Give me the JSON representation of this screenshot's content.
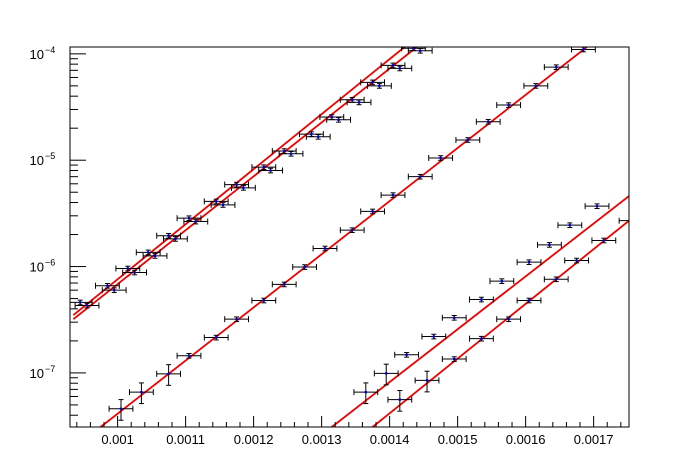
{
  "chart_data": {
    "type": "scatter",
    "title": "",
    "xlabel": "",
    "ylabel": "",
    "xlim": [
      0.00093,
      0.001752
    ],
    "ylim": [
      3.1e-08,
      0.000116
    ],
    "yscale": "log",
    "grid": false,
    "legend": "none",
    "x_ticks": [
      {
        "value": 0.001,
        "label": "0.001"
      },
      {
        "value": 0.0011,
        "label": "0.0011"
      },
      {
        "value": 0.0012,
        "label": "0.0012"
      },
      {
        "value": 0.0013,
        "label": "0.0013"
      },
      {
        "value": 0.0014,
        "label": "0.0014"
      },
      {
        "value": 0.0015,
        "label": "0.0015"
      },
      {
        "value": 0.0016,
        "label": "0.0016"
      },
      {
        "value": 0.0017,
        "label": "0.0017"
      }
    ],
    "y_ticks": [
      {
        "value": 1e-07,
        "base": "10",
        "exp": "−7"
      },
      {
        "value": 1e-06,
        "base": "10",
        "exp": "−6"
      },
      {
        "value": 1e-05,
        "base": "10",
        "exp": "−5"
      },
      {
        "value": 0.0001,
        "base": "10",
        "exp": "−4"
      }
    ],
    "colors": {
      "fit": "#ee0000",
      "marker": "#0000cc",
      "errorbar": "#000000",
      "axis": "#000000"
    },
    "x_error": 1.75e-05,
    "series": [
      {
        "fit": {
          "x0": 0.000935,
          "y0": 3.5e-07,
          "x1": 0.001422,
          "y1": 0.000116
        },
        "points": [
          [
            0.000945,
            4.6e-07
          ],
          [
            0.000985,
            6.6e-07
          ],
          [
            0.001015,
            9.6e-07
          ],
          [
            0.001045,
            1.36e-06
          ],
          [
            0.001075,
            1.95e-06
          ],
          [
            0.001105,
            2.85e-06
          ],
          [
            0.001145,
            4.1e-06
          ],
          [
            0.001175,
            5.9e-06
          ],
          [
            0.001215,
            8.6e-06
          ],
          [
            0.001245,
            1.22e-05
          ],
          [
            0.001285,
            1.76e-05
          ],
          [
            0.001315,
            2.55e-05
          ],
          [
            0.001345,
            3.7e-05
          ],
          [
            0.001375,
            5.4e-05
          ],
          [
            0.001405,
            7.8e-05
          ],
          [
            0.001435,
            0.000113
          ]
        ]
      },
      {
        "fit": {
          "x0": 0.000935,
          "y0": 3.2e-07,
          "x1": 0.00144,
          "y1": 0.000116
        },
        "points": [
          [
            0.000955,
            4.3e-07
          ],
          [
            0.000995,
            6e-07
          ],
          [
            0.001025,
            8.8e-07
          ],
          [
            0.001055,
            1.26e-06
          ],
          [
            0.001085,
            1.82e-06
          ],
          [
            0.001115,
            2.65e-06
          ],
          [
            0.001155,
            3.8e-06
          ],
          [
            0.001185,
            5.5e-06
          ],
          [
            0.001225,
            8e-06
          ],
          [
            0.001255,
            1.15e-05
          ],
          [
            0.001295,
            1.66e-05
          ],
          [
            0.001325,
            2.4e-05
          ],
          [
            0.001355,
            3.5e-05
          ],
          [
            0.001385,
            5e-05
          ],
          [
            0.001415,
            7.3e-05
          ],
          [
            0.001445,
            0.000107
          ]
        ]
      },
      {
        "fit": {
          "x0": 0.000975,
          "y0": 3.1e-08,
          "x1": 0.00169,
          "y1": 0.000116
        },
        "points": [
          [
            0.001005,
            4.6e-08
          ],
          [
            0.001035,
            6.6e-08
          ],
          [
            0.001075,
            9.8e-08
          ],
          [
            0.001105,
            1.45e-07
          ],
          [
            0.001145,
            2.15e-07
          ],
          [
            0.001175,
            3.2e-07
          ],
          [
            0.001215,
            4.8e-07
          ],
          [
            0.001245,
            6.8e-07
          ],
          [
            0.001275,
            9.9e-07
          ],
          [
            0.001305,
            1.48e-06
          ],
          [
            0.001345,
            2.2e-06
          ],
          [
            0.001375,
            3.3e-06
          ],
          [
            0.001405,
            4.7e-06
          ],
          [
            0.001445,
            7e-06
          ],
          [
            0.001475,
            1.05e-05
          ],
          [
            0.001515,
            1.55e-05
          ],
          [
            0.001545,
            2.3e-05
          ],
          [
            0.001575,
            3.3e-05
          ],
          [
            0.001615,
            5e-05
          ],
          [
            0.001645,
            7.5e-05
          ],
          [
            0.001685,
            0.00011
          ]
        ]
      },
      {
        "fit": {
          "x0": 0.001315,
          "y0": 3.1e-08,
          "x1": 0.001752,
          "y1": 4.6e-06
        },
        "points": [
          [
            0.001365,
            6.6e-08
          ],
          [
            0.001395,
            9.9e-08
          ],
          [
            0.001425,
            1.48e-07
          ],
          [
            0.001465,
            2.2e-07
          ],
          [
            0.001495,
            3.3e-07
          ],
          [
            0.001535,
            4.9e-07
          ],
          [
            0.001565,
            7.3e-07
          ],
          [
            0.001605,
            1.1e-06
          ],
          [
            0.001635,
            1.6e-06
          ],
          [
            0.001665,
            2.45e-06
          ],
          [
            0.001705,
            3.7e-06
          ]
        ]
      },
      {
        "fit": {
          "x0": 0.001375,
          "y0": 3.1e-08,
          "x1": 0.001752,
          "y1": 2.7e-06
        },
        "points": [
          [
            0.001415,
            5.6e-08
          ],
          [
            0.001455,
            8.5e-08
          ],
          [
            0.001495,
            1.35e-07
          ],
          [
            0.001535,
            2.1e-07
          ],
          [
            0.001575,
            3.2e-07
          ],
          [
            0.001605,
            4.8e-07
          ],
          [
            0.001645,
            7.6e-07
          ],
          [
            0.001675,
            1.14e-06
          ],
          [
            0.001715,
            1.76e-06
          ],
          [
            0.001755,
            2.7e-06
          ]
        ]
      }
    ]
  }
}
